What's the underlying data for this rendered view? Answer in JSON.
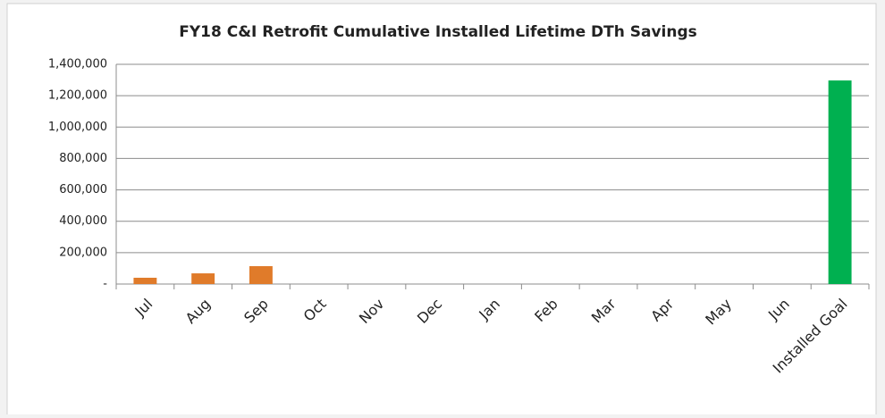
{
  "chart_data": {
    "type": "bar",
    "title": "FY18 C&I Retrofit Cumulative Installed Lifetime DTh Savings",
    "categories": [
      "Jul",
      "Aug",
      "Sep",
      "Oct",
      "Nov",
      "Dec",
      "Jan",
      "Feb",
      "Mar",
      "Apr",
      "May",
      "Jun",
      "Installed Goal"
    ],
    "values": [
      40000,
      68000,
      114000,
      null,
      null,
      null,
      null,
      null,
      null,
      null,
      null,
      null,
      1297000
    ],
    "colors": [
      "#e07b2a",
      "#e07b2a",
      "#e07b2a",
      "#e07b2a",
      "#e07b2a",
      "#e07b2a",
      "#e07b2a",
      "#e07b2a",
      "#e07b2a",
      "#e07b2a",
      "#e07b2a",
      "#e07b2a",
      "#00b050"
    ],
    "ylim": [
      0,
      1400000
    ],
    "yticks": [
      {
        "value": 0,
        "label": "-"
      },
      {
        "value": 200000,
        "label": "200,000"
      },
      {
        "value": 400000,
        "label": "400,000"
      },
      {
        "value": 600000,
        "label": "600,000"
      },
      {
        "value": 800000,
        "label": "800,000"
      },
      {
        "value": 1000000,
        "label": "1,000,000"
      },
      {
        "value": 1200000,
        "label": "1,200,000"
      },
      {
        "value": 1400000,
        "label": "1,400,000"
      }
    ],
    "grid": true
  }
}
